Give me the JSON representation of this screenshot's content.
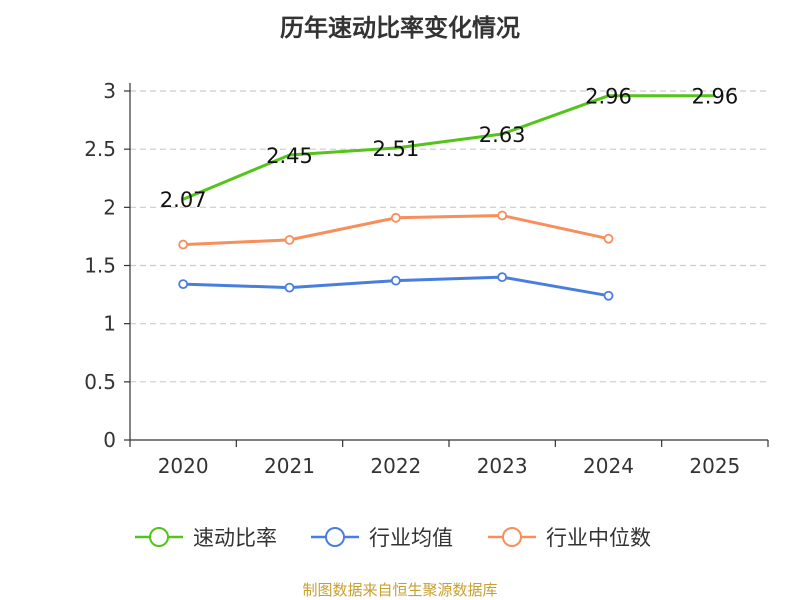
{
  "chart_data": {
    "type": "line",
    "title": "历年速动比率变化情况",
    "categories": [
      "2020",
      "2021",
      "2022",
      "2023",
      "2024",
      "2025"
    ],
    "ylim": [
      0,
      3
    ],
    "yticks": [
      "0",
      "0.5",
      "1",
      "1.5",
      "2",
      "2.5",
      "3"
    ],
    "grid": true,
    "legend_position": "bottom",
    "series": [
      {
        "name": "速动比率",
        "color": "#52c41a",
        "values": [
          2.07,
          2.45,
          2.51,
          2.63,
          2.96,
          2.96
        ],
        "labels": [
          "2.07",
          "2.45",
          "2.51",
          "2.63",
          "2.96",
          "2.96"
        ],
        "show_labels": true
      },
      {
        "name": "行业均值",
        "color": "#4a7ede",
        "values": [
          1.34,
          1.31,
          1.37,
          1.4,
          1.24,
          null
        ],
        "show_labels": false
      },
      {
        "name": "行业中位数",
        "color": "#f88e5a",
        "values": [
          1.68,
          1.72,
          1.91,
          1.93,
          1.73,
          null
        ],
        "show_labels": false
      }
    ]
  },
  "source": "制图数据来自恒生聚源数据库"
}
